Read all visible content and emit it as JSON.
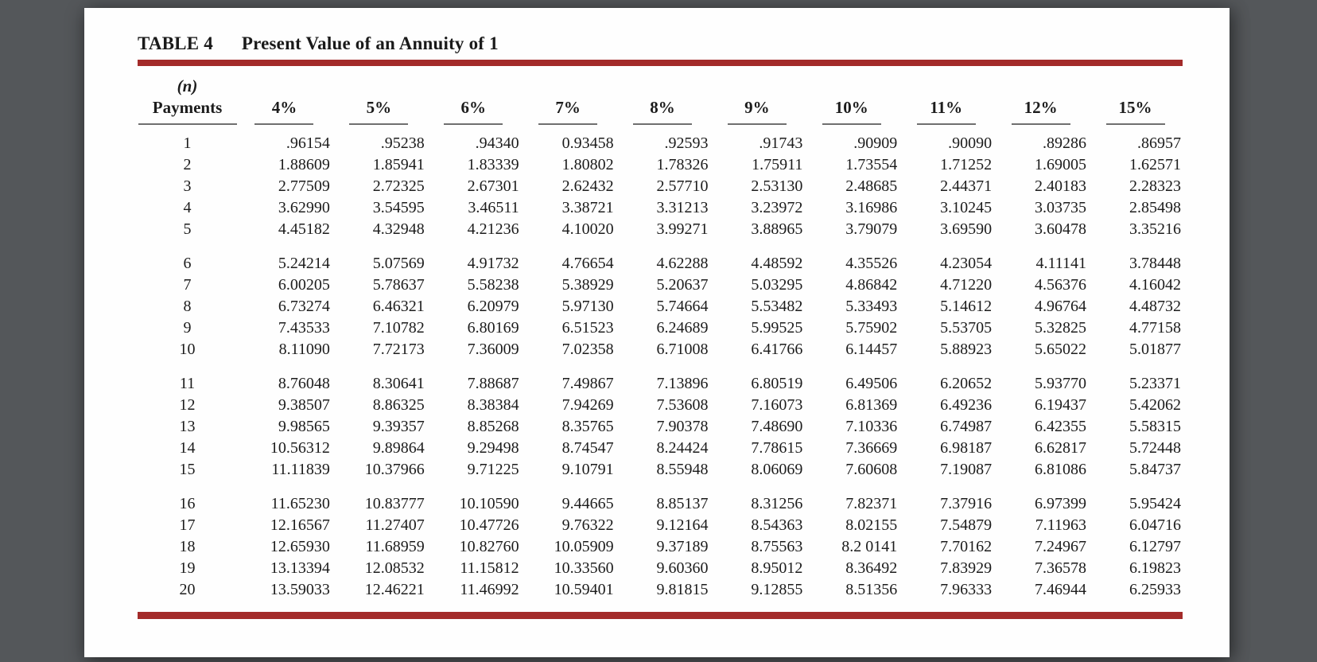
{
  "page": {
    "title_label": "TABLE 4",
    "title_text": "Present Value of an Annuity of 1"
  },
  "colors": {
    "rule_red": "#a32b2a",
    "background_gray": "#54575a",
    "header_underline_gray": "#6f6f6f"
  },
  "table": {
    "n_header_top": "(n)",
    "n_header_bottom": "Payments",
    "rate_headers": [
      "4%",
      "5%",
      "6%",
      "7%",
      "8%",
      "9%",
      "10%",
      "11%",
      "12%",
      "15%"
    ],
    "group_size": 5,
    "rows": [
      {
        "n": "1",
        "values": [
          ".96154",
          ".95238",
          ".94340",
          "0.93458",
          ".92593",
          ".91743",
          ".90909",
          ".90090",
          ".89286",
          ".86957"
        ]
      },
      {
        "n": "2",
        "values": [
          "1.88609",
          "1.85941",
          "1.83339",
          "1.80802",
          "1.78326",
          "1.75911",
          "1.73554",
          "1.71252",
          "1.69005",
          "1.62571"
        ]
      },
      {
        "n": "3",
        "values": [
          "2.77509",
          "2.72325",
          "2.67301",
          "2.62432",
          "2.57710",
          "2.53130",
          "2.48685",
          "2.44371",
          "2.40183",
          "2.28323"
        ]
      },
      {
        "n": "4",
        "values": [
          "3.62990",
          "3.54595",
          "3.46511",
          "3.38721",
          "3.31213",
          "3.23972",
          "3.16986",
          "3.10245",
          "3.03735",
          "2.85498"
        ]
      },
      {
        "n": "5",
        "values": [
          "4.45182",
          "4.32948",
          "4.21236",
          "4.10020",
          "3.99271",
          "3.88965",
          "3.79079",
          "3.69590",
          "3.60478",
          "3.35216"
        ]
      },
      {
        "n": "6",
        "values": [
          "5.24214",
          "5.07569",
          "4.91732",
          "4.76654",
          "4.62288",
          "4.48592",
          "4.35526",
          "4.23054",
          "4.11141",
          "3.78448"
        ]
      },
      {
        "n": "7",
        "values": [
          "6.00205",
          "5.78637",
          "5.58238",
          "5.38929",
          "5.20637",
          "5.03295",
          "4.86842",
          "4.71220",
          "4.56376",
          "4.16042"
        ]
      },
      {
        "n": "8",
        "values": [
          "6.73274",
          "6.46321",
          "6.20979",
          "5.97130",
          "5.74664",
          "5.53482",
          "5.33493",
          "5.14612",
          "4.96764",
          "4.48732"
        ]
      },
      {
        "n": "9",
        "values": [
          "7.43533",
          "7.10782",
          "6.80169",
          "6.51523",
          "6.24689",
          "5.99525",
          "5.75902",
          "5.53705",
          "5.32825",
          "4.77158"
        ]
      },
      {
        "n": "10",
        "values": [
          "8.11090",
          "7.72173",
          "7.36009",
          "7.02358",
          "6.71008",
          "6.41766",
          "6.14457",
          "5.88923",
          "5.65022",
          "5.01877"
        ]
      },
      {
        "n": "11",
        "values": [
          "8.76048",
          "8.30641",
          "7.88687",
          "7.49867",
          "7.13896",
          "6.80519",
          "6.49506",
          "6.20652",
          "5.93770",
          "5.23371"
        ]
      },
      {
        "n": "12",
        "values": [
          "9.38507",
          "8.86325",
          "8.38384",
          "7.94269",
          "7.53608",
          "7.16073",
          "6.81369",
          "6.49236",
          "6.19437",
          "5.42062"
        ]
      },
      {
        "n": "13",
        "values": [
          "9.98565",
          "9.39357",
          "8.85268",
          "8.35765",
          "7.90378",
          "7.48690",
          "7.10336",
          "6.74987",
          "6.42355",
          "5.58315"
        ]
      },
      {
        "n": "14",
        "values": [
          "10.56312",
          "9.89864",
          "9.29498",
          "8.74547",
          "8.24424",
          "7.78615",
          "7.36669",
          "6.98187",
          "6.62817",
          "5.72448"
        ]
      },
      {
        "n": "15",
        "values": [
          "11.11839",
          "10.37966",
          "9.71225",
          "9.10791",
          "8.55948",
          "8.06069",
          "7.60608",
          "7.19087",
          "6.81086",
          "5.84737"
        ]
      },
      {
        "n": "16",
        "values": [
          "11.65230",
          "10.83777",
          "10.10590",
          "9.44665",
          "8.85137",
          "8.31256",
          "7.82371",
          "7.37916",
          "6.97399",
          "5.95424"
        ]
      },
      {
        "n": "17",
        "values": [
          "12.16567",
          "11.27407",
          "10.47726",
          "9.76322",
          "9.12164",
          "8.54363",
          "8.02155",
          "7.54879",
          "7.11963",
          "6.04716"
        ]
      },
      {
        "n": "18",
        "values": [
          "12.65930",
          "11.68959",
          "10.82760",
          "10.05909",
          "9.37189",
          "8.75563",
          "8.2 0141",
          "7.70162",
          "7.24967",
          "6.12797"
        ]
      },
      {
        "n": "19",
        "values": [
          "13.13394",
          "12.08532",
          "11.15812",
          "10.33560",
          "9.60360",
          "8.95012",
          "8.36492",
          "7.83929",
          "7.36578",
          "6.19823"
        ]
      },
      {
        "n": "20",
        "values": [
          "13.59033",
          "12.46221",
          "11.46992",
          "10.59401",
          "9.81815",
          "9.12855",
          "8.51356",
          "7.96333",
          "7.46944",
          "6.25933"
        ]
      }
    ]
  }
}
